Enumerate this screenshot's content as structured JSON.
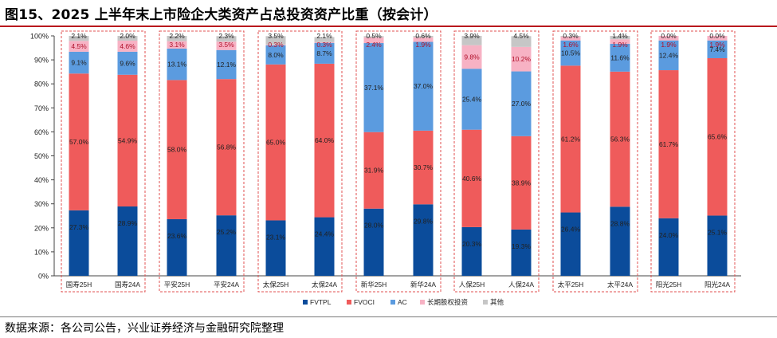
{
  "figure": {
    "title": "图15、2025 上半年末上市险企大类资产占总投资资产比重（按会计）",
    "source": "数据来源：各公司公告，兴业证券经济与金融研究院整理"
  },
  "chart_data": {
    "type": "bar",
    "stacked": true,
    "categories": [
      "国寿25H",
      "国寿24A",
      "平安25H",
      "平安24A",
      "太保25H",
      "太保24A",
      "新华25H",
      "新华24A",
      "人保25H",
      "人保24A",
      "太平25H",
      "太平24A",
      "阳光25H",
      "阳光24A"
    ],
    "groups": [
      "国寿",
      "平安",
      "太保",
      "新华",
      "人保",
      "太平",
      "阳光"
    ],
    "series": [
      {
        "name": "FVTPL",
        "color": "#0b4c9b",
        "values": [
          27.3,
          28.9,
          23.6,
          25.2,
          23.1,
          24.4,
          28.0,
          29.8,
          20.3,
          19.3,
          26.4,
          28.8,
          24.0,
          25.1
        ]
      },
      {
        "name": "FVOCI",
        "color": "#ef5b5b",
        "values": [
          57.0,
          54.9,
          58.0,
          56.8,
          65.0,
          64.0,
          31.9,
          30.7,
          40.6,
          38.9,
          61.2,
          56.3,
          61.7,
          65.6
        ]
      },
      {
        "name": "AC",
        "color": "#5b9bdf",
        "values": [
          9.1,
          9.6,
          13.1,
          12.1,
          8.0,
          8.7,
          37.1,
          37.0,
          25.4,
          27.0,
          10.5,
          11.6,
          12.4,
          7.4
        ]
      },
      {
        "name": "长期股权投资",
        "color": "#f7b2c4",
        "values": [
          4.5,
          4.6,
          3.1,
          3.5,
          0.3,
          0.3,
          2.4,
          1.9,
          9.8,
          10.2,
          1.6,
          1.9,
          1.9,
          1.9
        ]
      },
      {
        "name": "其他",
        "color": "#c6c6c6",
        "values": [
          2.1,
          2.0,
          2.2,
          2.3,
          3.5,
          2.1,
          0.5,
          0.6,
          3.9,
          4.5,
          0.3,
          1.4,
          0.0,
          0.0
        ]
      }
    ],
    "ylim": [
      0,
      100
    ],
    "yticks": [
      "0%",
      "10%",
      "20%",
      "30%",
      "40%",
      "50%",
      "60%",
      "70%",
      "80%",
      "90%",
      "100%"
    ],
    "grid": false,
    "legend_position": "bottom"
  }
}
